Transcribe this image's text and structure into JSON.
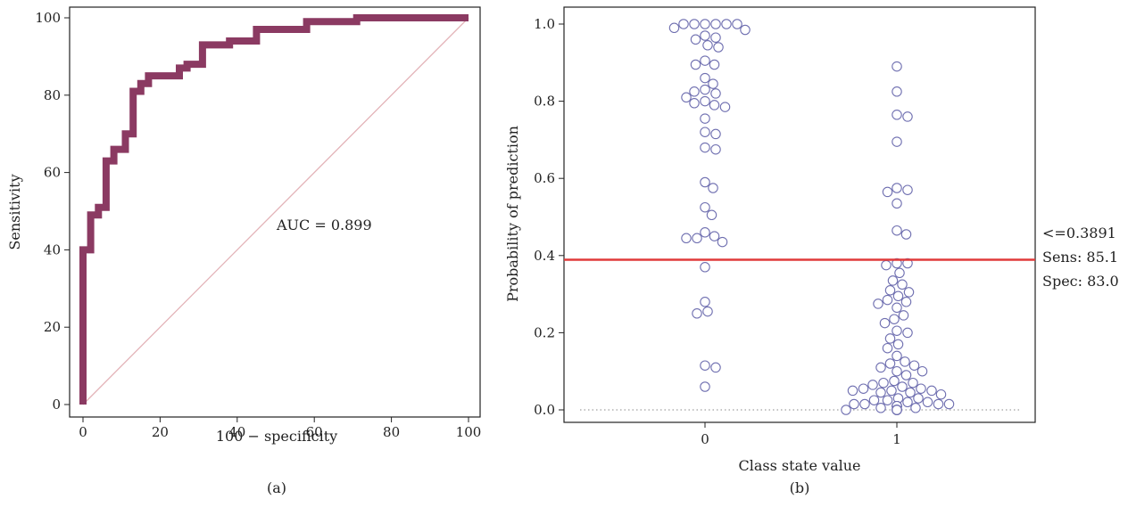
{
  "chart_data": [
    {
      "type": "line",
      "panel_label": "(a)",
      "xlabel": "100 − specificity",
      "ylabel": "Sensitivity",
      "xlim": [
        0,
        100
      ],
      "ylim": [
        0,
        100
      ],
      "x_ticks": [
        0,
        20,
        40,
        60,
        80,
        100
      ],
      "y_ticks": [
        0,
        20,
        40,
        60,
        80,
        100
      ],
      "annotation": "AUC = 0.899",
      "colors": {
        "roc": "#8b3a62",
        "diagonal": "#e3b3b8"
      },
      "series": [
        {
          "kind": "roc",
          "x": [
            0,
            0,
            2,
            2,
            4,
            4,
            6,
            6,
            8,
            8,
            11,
            11,
            13,
            13,
            15,
            15,
            17,
            17,
            25,
            25,
            27,
            27,
            31,
            31,
            38,
            38,
            45,
            45,
            58,
            58,
            71,
            71,
            100
          ],
          "y": [
            0,
            40,
            40,
            49,
            49,
            51,
            51,
            63,
            63,
            66,
            66,
            70,
            70,
            81,
            81,
            83,
            83,
            85,
            85,
            87,
            87,
            88,
            88,
            93,
            93,
            94,
            94,
            97,
            97,
            99,
            99,
            100,
            100
          ]
        },
        {
          "kind": "diagonal",
          "x": [
            0,
            100
          ],
          "y": [
            0,
            100
          ]
        }
      ]
    },
    {
      "type": "scatter",
      "panel_label": "(b)",
      "xlabel": "Class state value",
      "ylabel": "Probability of prediction",
      "categories": [
        "0",
        "1"
      ],
      "ylim": [
        -0.03,
        1.03
      ],
      "y_ticks": [
        "0.0",
        "0.2",
        "0.4",
        "0.6",
        "0.8",
        "1.0"
      ],
      "cutoff": {
        "value": 0.3891,
        "lines": [
          "<=0.3891",
          "Sens: 85.1",
          "Spec: 83.0"
        ]
      },
      "colors": {
        "points": "#6f6fb0",
        "cutoff": "#e03a3a",
        "baseline": "#888888"
      },
      "series": [
        {
          "category": "0",
          "values": [
            1.0,
            1.0,
            1.0,
            1.0,
            1.0,
            1.0,
            0.99,
            0.985,
            0.97,
            0.965,
            0.96,
            0.945,
            0.94,
            0.905,
            0.895,
            0.895,
            0.86,
            0.845,
            0.83,
            0.825,
            0.82,
            0.81,
            0.8,
            0.795,
            0.79,
            0.785,
            0.755,
            0.72,
            0.715,
            0.68,
            0.675,
            0.59,
            0.575,
            0.525,
            0.505,
            0.46,
            0.45,
            0.445,
            0.445,
            0.435,
            0.37,
            0.28,
            0.255,
            0.25,
            0.115,
            0.11,
            0.06
          ]
        },
        {
          "category": "1",
          "values": [
            0.89,
            0.825,
            0.765,
            0.76,
            0.695,
            0.575,
            0.57,
            0.565,
            0.535,
            0.465,
            0.455,
            0.38,
            0.38,
            0.375,
            0.355,
            0.335,
            0.325,
            0.31,
            0.305,
            0.295,
            0.285,
            0.28,
            0.275,
            0.265,
            0.245,
            0.235,
            0.225,
            0.205,
            0.2,
            0.185,
            0.17,
            0.16,
            0.14,
            0.125,
            0.12,
            0.115,
            0.11,
            0.1,
            0.1,
            0.09,
            0.075,
            0.07,
            0.07,
            0.065,
            0.06,
            0.055,
            0.055,
            0.05,
            0.05,
            0.05,
            0.045,
            0.045,
            0.04,
            0.03,
            0.03,
            0.025,
            0.025,
            0.02,
            0.02,
            0.015,
            0.015,
            0.015,
            0.015,
            0.01,
            0.01,
            0.01,
            0.01,
            0.01,
            0.005,
            0.005,
            0.0,
            0.0,
            0.0,
            0.0,
            0.0,
            0.0,
            0.0,
            0.0,
            0.0,
            0.0,
            0.0,
            0.0
          ]
        }
      ]
    }
  ]
}
